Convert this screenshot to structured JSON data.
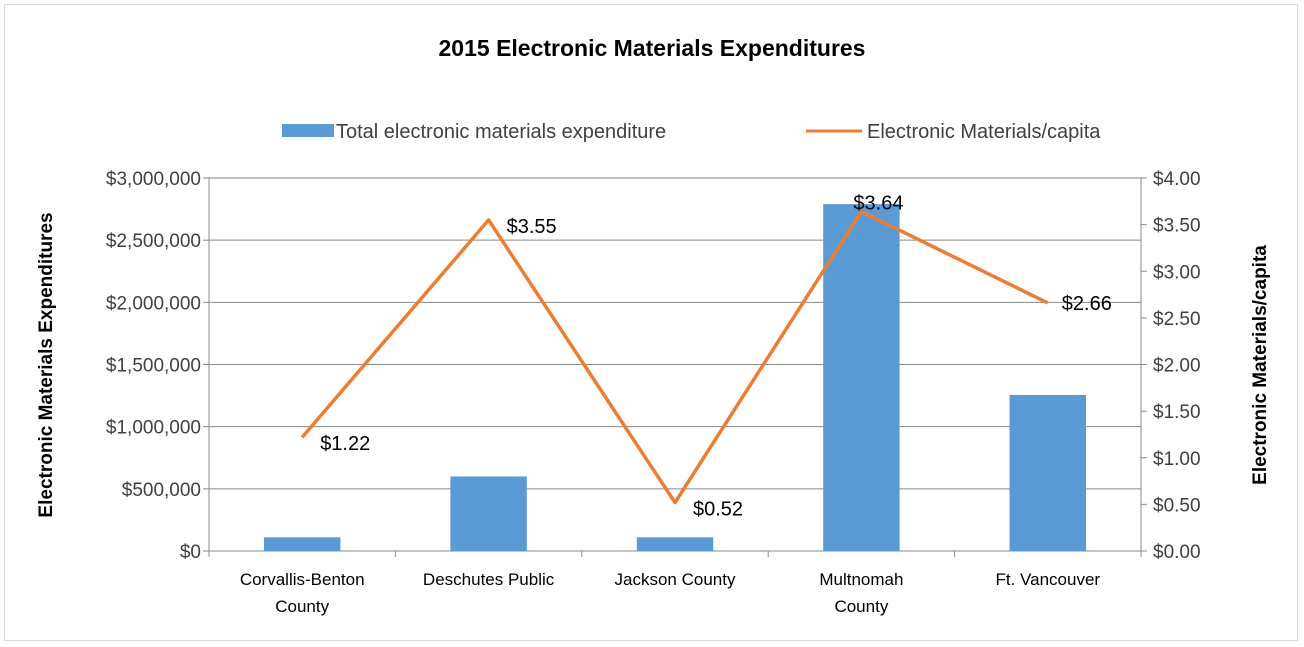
{
  "chart_data": {
    "type": "bar",
    "title": "2015 Electronic Materials Expenditures",
    "categories": [
      [
        "Corvallis-Benton",
        "County"
      ],
      [
        "Deschutes Public"
      ],
      [
        "Jackson County"
      ],
      [
        "Multnomah",
        "County"
      ],
      [
        "Ft. Vancouver"
      ]
    ],
    "series": [
      {
        "name": "Total electronic materials expenditure",
        "type": "bar",
        "axis": "left",
        "color": "#5b9bd5",
        "values": [
          110000,
          600000,
          110000,
          2790000,
          1255000
        ]
      },
      {
        "name": "Electronic Materials/capita",
        "type": "line",
        "axis": "right",
        "color": "#ed7d31",
        "values": [
          1.22,
          3.55,
          0.52,
          3.64,
          2.66
        ],
        "labels": [
          "$1.22",
          "$3.55",
          "$0.52",
          "$3.64",
          "$2.66"
        ]
      }
    ],
    "ylabel": "Electronic Materials Expenditures",
    "y2label": "Electronic Materials/capita",
    "ylim": [
      0,
      3000000
    ],
    "y2lim": [
      0,
      4
    ],
    "yticks": [
      "$0",
      "$500,000",
      "$1,000,000",
      "$1,500,000",
      "$2,000,000",
      "$2,500,000",
      "$3,000,000"
    ],
    "y2ticks": [
      "$0.00",
      "$0.50",
      "$1.00",
      "$1.50",
      "$2.00",
      "$2.50",
      "$3.00",
      "$3.50",
      "$4.00"
    ],
    "grid": true,
    "legend": "top"
  }
}
